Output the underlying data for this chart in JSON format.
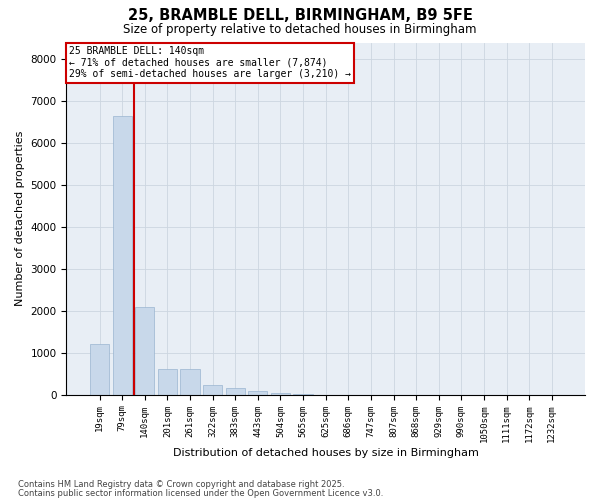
{
  "title_line1": "25, BRAMBLE DELL, BIRMINGHAM, B9 5FE",
  "title_line2": "Size of property relative to detached houses in Birmingham",
  "xlabel": "Distribution of detached houses by size in Birmingham",
  "ylabel": "Number of detached properties",
  "annotation_line1": "25 BRAMBLE DELL: 140sqm",
  "annotation_line2": "← 71% of detached houses are smaller (7,874)",
  "annotation_line3": "29% of semi-detached houses are larger (3,210) →",
  "bar_color": "#c8d8ea",
  "bar_edge_color": "#9ab5d0",
  "red_line_color": "#cc0000",
  "grid_color": "#ccd6e0",
  "background_color": "#e8eef5",
  "categories": [
    "19sqm",
    "79sqm",
    "140sqm",
    "201sqm",
    "261sqm",
    "322sqm",
    "383sqm",
    "443sqm",
    "504sqm",
    "565sqm",
    "625sqm",
    "686sqm",
    "747sqm",
    "807sqm",
    "868sqm",
    "929sqm",
    "990sqm",
    "1050sqm",
    "1111sqm",
    "1172sqm",
    "1232sqm"
  ],
  "values": [
    1200,
    6650,
    2100,
    620,
    620,
    230,
    150,
    90,
    30,
    5,
    0,
    0,
    0,
    0,
    0,
    0,
    0,
    0,
    0,
    0,
    0
  ],
  "ylim": [
    0,
    8400
  ],
  "yticks": [
    0,
    1000,
    2000,
    3000,
    4000,
    5000,
    6000,
    7000,
    8000
  ],
  "footnote1": "Contains HM Land Registry data © Crown copyright and database right 2025.",
  "footnote2": "Contains public sector information licensed under the Open Government Licence v3.0."
}
